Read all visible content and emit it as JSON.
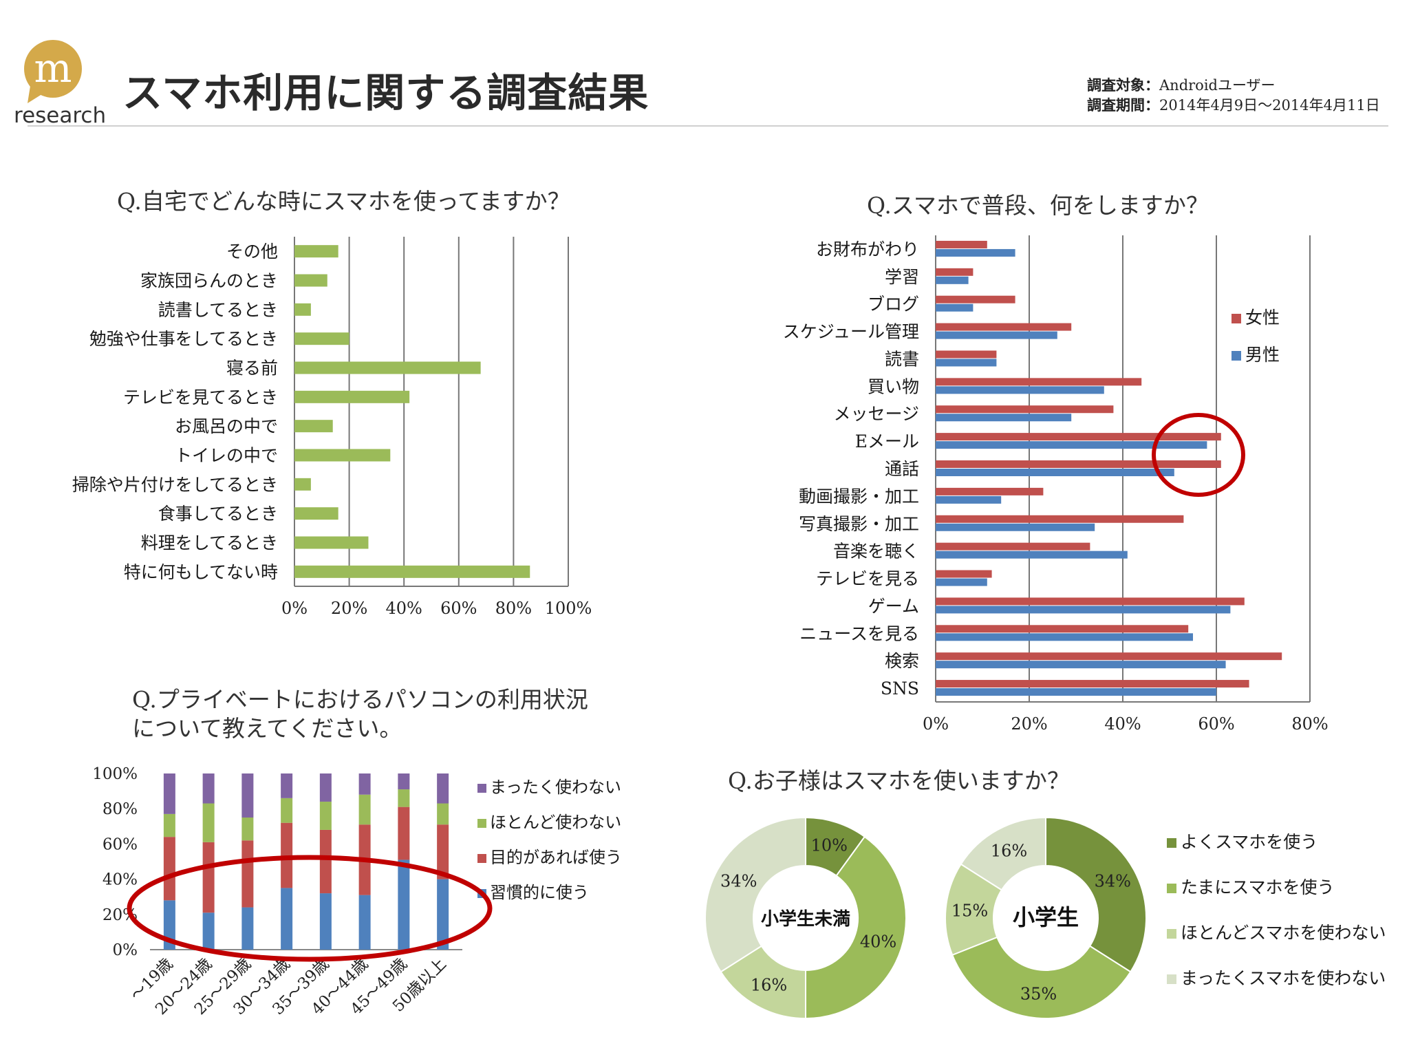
{
  "header": {
    "logo_text": "research",
    "logo_letter": "m",
    "title": "スマホ利用に関する調査結果",
    "target_label": "調査対象：",
    "target_value": "Androidユーザー",
    "period_label": "調査期間：",
    "period_value": "2014年4月9日〜2014年4月11日",
    "logo_color": "#d4a94a"
  },
  "chart_data": [
    {
      "id": "home-usage",
      "type": "bar",
      "orientation": "horizontal",
      "title": "Q.自宅でどんな時にスマホを使ってますか？",
      "categories": [
        "その他",
        "家族団らんのとき",
        "読書してるとき",
        "勉強や仕事をしてるとき",
        "寝る前",
        "テレビを見てるとき",
        "お風呂の中で",
        "トイレの中で",
        "掃除や片付けをしてるとき",
        "食事してるとき",
        "料理をしてるとき",
        "特に何もしてない時"
      ],
      "values": [
        16,
        12,
        6,
        20,
        68,
        42,
        14,
        35,
        6,
        16,
        27,
        86
      ],
      "xlim": [
        0,
        100
      ],
      "ticks": [
        "0%",
        "20%",
        "40%",
        "60%",
        "80%",
        "100%"
      ],
      "grid": true,
      "color": "#9bbb59"
    },
    {
      "id": "daily-use",
      "type": "bar",
      "orientation": "horizontal",
      "title": "Q.スマホで普段、何をしますか？",
      "categories": [
        "お財布がわり",
        "学習",
        "ブログ",
        "スケジュール管理",
        "読書",
        "買い物",
        "メッセージ",
        "Eメール",
        "通話",
        "動画撮影・加工",
        "写真撮影・加工",
        "音楽を聴く",
        "テレビを見る",
        "ゲーム",
        "ニュースを見る",
        "検索",
        "SNS"
      ],
      "series": [
        {
          "name": "女性",
          "color": "#c0504d",
          "values": [
            11,
            8,
            17,
            29,
            13,
            44,
            38,
            61,
            61,
            23,
            53,
            33,
            12,
            66,
            54,
            74,
            67
          ]
        },
        {
          "name": "男性",
          "color": "#4f81bd",
          "values": [
            17,
            7,
            8,
            26,
            13,
            36,
            29,
            58,
            51,
            14,
            34,
            41,
            11,
            63,
            55,
            62,
            60
          ]
        }
      ],
      "xlim": [
        0,
        80
      ],
      "ticks": [
        "0%",
        "20%",
        "40%",
        "60%",
        "80%"
      ],
      "grid": true,
      "legend": "right"
    },
    {
      "id": "pc-usage",
      "type": "bar",
      "stacked": true,
      "title": "Q.プライベートにおけるパソコンの利用状況について教えてください。",
      "categories": [
        "〜19歳",
        "20〜24歳",
        "25〜29歳",
        "30〜34歳",
        "35〜39歳",
        "40〜44歳",
        "45〜49歳",
        "50歳以上"
      ],
      "series": [
        {
          "name": "習慣的に使う",
          "color": "#4f81bd",
          "values": [
            28,
            21,
            24,
            35,
            32,
            31,
            51,
            40
          ]
        },
        {
          "name": "目的があれば使う",
          "color": "#c0504d",
          "values": [
            36,
            40,
            38,
            37,
            36,
            40,
            30,
            31
          ]
        },
        {
          "name": "ほとんど使わない",
          "color": "#9bbb59",
          "values": [
            13,
            22,
            13,
            14,
            16,
            17,
            10,
            12
          ]
        },
        {
          "name": "まったく使わない",
          "color": "#8064a2",
          "values": [
            23,
            17,
            25,
            14,
            16,
            12,
            9,
            17
          ]
        }
      ],
      "ylim": [
        0,
        100
      ],
      "ticks": [
        "0%",
        "20%",
        "40%",
        "60%",
        "80%",
        "100%"
      ],
      "legend": "right"
    },
    {
      "id": "child-usage",
      "type": "pie",
      "donut": true,
      "title": "Q.お子様はスマホを使いますか？",
      "legend_entries": [
        "よくスマホを使う",
        "たまにスマホを使う",
        "ほとんどスマホを使わない",
        "まったくスマホを使わない"
      ],
      "colors": [
        "#76923c",
        "#9bbb59",
        "#c3d69b",
        "#d7e0c7"
      ],
      "pies": [
        {
          "label": "小学生未満",
          "values": [
            10,
            40,
            16,
            34
          ],
          "value_labels": [
            "10%",
            "40%",
            "16%",
            "34%"
          ]
        },
        {
          "label": "小学生",
          "values": [
            34,
            35,
            15,
            16
          ],
          "value_labels": [
            "34%",
            "35%",
            "15%",
            "16%"
          ]
        }
      ],
      "legend": "right"
    }
  ],
  "highlight_color": "#c00000"
}
